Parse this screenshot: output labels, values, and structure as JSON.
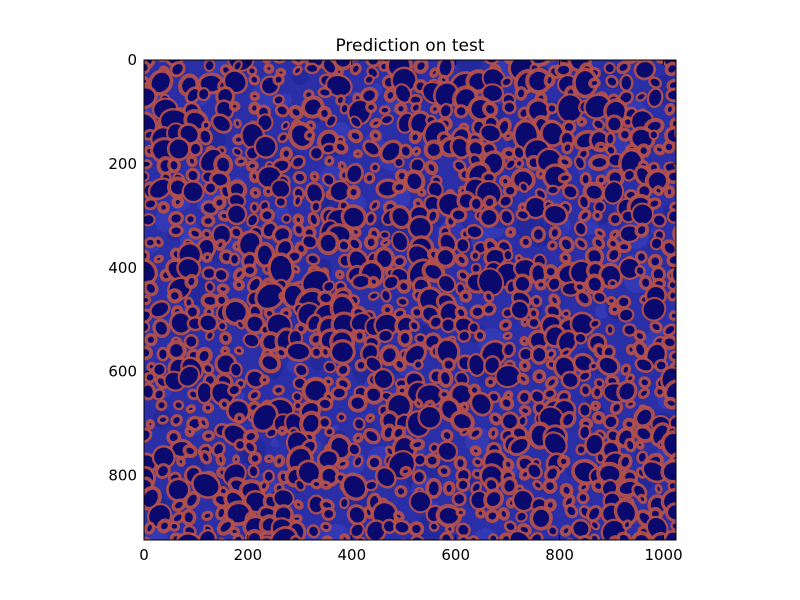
{
  "title": "Prediction on test",
  "image": {
    "description_palette": {
      "background": "#0a0a6e",
      "tissue": "#2a2fa8",
      "ring": "#b5504a"
    },
    "extent": {
      "x": [
        0,
        1024
      ],
      "y": [
        0,
        924
      ]
    }
  },
  "axes": {
    "x_ticks": [
      0,
      200,
      400,
      600,
      800,
      1000
    ],
    "y_ticks": [
      0,
      200,
      400,
      600,
      800
    ]
  }
}
